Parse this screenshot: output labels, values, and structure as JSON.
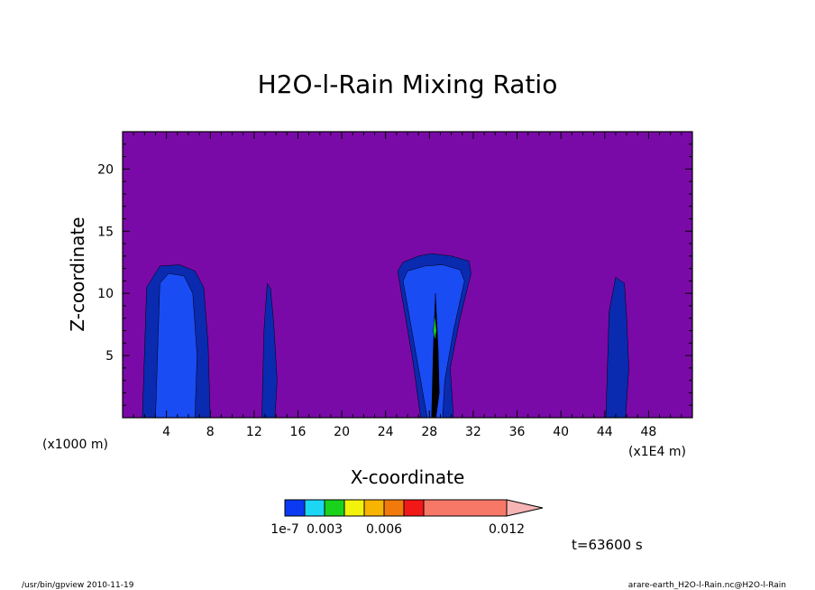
{
  "chart_data": {
    "type": "heatmap",
    "title": "H2O-l-Rain Mixing Ratio",
    "xlabel": "X-coordinate",
    "ylabel": "Z-coordinate",
    "x_unit_left": "(x1000 m)",
    "x_unit_right": "(x1E4 m)",
    "xlim": [
      0,
      52
    ],
    "ylim": [
      0,
      23
    ],
    "x_ticks": [
      4,
      8,
      12,
      16,
      20,
      24,
      28,
      32,
      36,
      40,
      44,
      48
    ],
    "y_ticks": [
      5,
      10,
      15,
      20
    ],
    "background_color": "#7a0aa8",
    "levels": {
      "colors": [
        "#0a3bf2",
        "#1cd6f4",
        "#18d21c",
        "#f2f20a",
        "#f7b400",
        "#f27a0a",
        "#f21818",
        "#f87868"
      ],
      "boundaries": [
        "1e-7",
        "0.003",
        "0.006",
        "0.012"
      ],
      "extend_color": "#f6b4b4"
    },
    "features": [
      {
        "name": "cloud-a-outer",
        "color": "#0a2ab0",
        "x": [
          1.8,
          2.2,
          3.4,
          5.2,
          6.6,
          7.4,
          7.8,
          8.0,
          7.6,
          1.6
        ],
        "z": [
          0.0,
          10.5,
          12.2,
          12.3,
          11.8,
          10.5,
          6.0,
          0.0,
          0.0,
          0.0
        ]
      },
      {
        "name": "cloud-a-inner",
        "color": "#1a4cf4",
        "x": [
          3.0,
          3.4,
          4.2,
          5.6,
          6.4,
          6.8,
          6.6,
          3.0
        ],
        "z": [
          0.0,
          10.8,
          11.6,
          11.4,
          10.0,
          5.0,
          0.0,
          0.0
        ]
      },
      {
        "name": "cloud-b",
        "color": "#0a2ab0",
        "x": [
          12.7,
          12.9,
          13.2,
          13.5,
          13.8,
          14.1,
          13.9,
          12.8
        ],
        "z": [
          0.0,
          7.0,
          10.8,
          10.4,
          7.5,
          3.0,
          0.0,
          0.0
        ]
      },
      {
        "name": "cloud-c-outer",
        "color": "#0a2ab0",
        "x": [
          27.2,
          26.5,
          25.1,
          25.6,
          27.0,
          28.2,
          30.0,
          31.6,
          31.8,
          30.8,
          29.9,
          30.2,
          26.8
        ],
        "z": [
          0.0,
          4.5,
          11.8,
          12.5,
          13.0,
          13.2,
          13.0,
          12.6,
          11.6,
          8.0,
          4.0,
          0.0,
          0.0
        ]
      },
      {
        "name": "cloud-c-inner",
        "color": "#1a4cf4",
        "x": [
          27.8,
          27.0,
          25.6,
          26.0,
          27.6,
          29.2,
          30.8,
          31.2,
          30.2,
          29.4,
          29.2
        ],
        "z": [
          0.0,
          4.0,
          11.0,
          11.8,
          12.2,
          12.3,
          11.9,
          11.0,
          7.0,
          3.0,
          0.0
        ]
      },
      {
        "name": "cloud-c-core",
        "color": "#000000",
        "x": [
          28.2,
          28.35,
          28.55,
          28.8,
          28.9,
          28.6
        ],
        "z": [
          0.0,
          5.5,
          10.0,
          5.5,
          2.0,
          0.0
        ]
      },
      {
        "name": "cloud-c-green",
        "color": "#18d21c",
        "x": [
          28.35,
          28.5,
          28.65,
          28.5
        ],
        "z": [
          7.0,
          8.3,
          7.0,
          6.2
        ]
      },
      {
        "name": "cloud-d",
        "color": "#0a2ab0",
        "x": [
          44.1,
          44.4,
          45.0,
          45.8,
          46.0,
          46.2,
          45.9,
          44.0
        ],
        "z": [
          0.0,
          8.5,
          11.3,
          10.8,
          8.0,
          4.0,
          0.0,
          0.0
        ]
      }
    ],
    "time_label": "t=63600 s",
    "footer_left": "/usr/bin/gpview  2010-11-19",
    "footer_right": "arare-earth_H2O-l-Rain.nc@H2O-l-Rain"
  }
}
